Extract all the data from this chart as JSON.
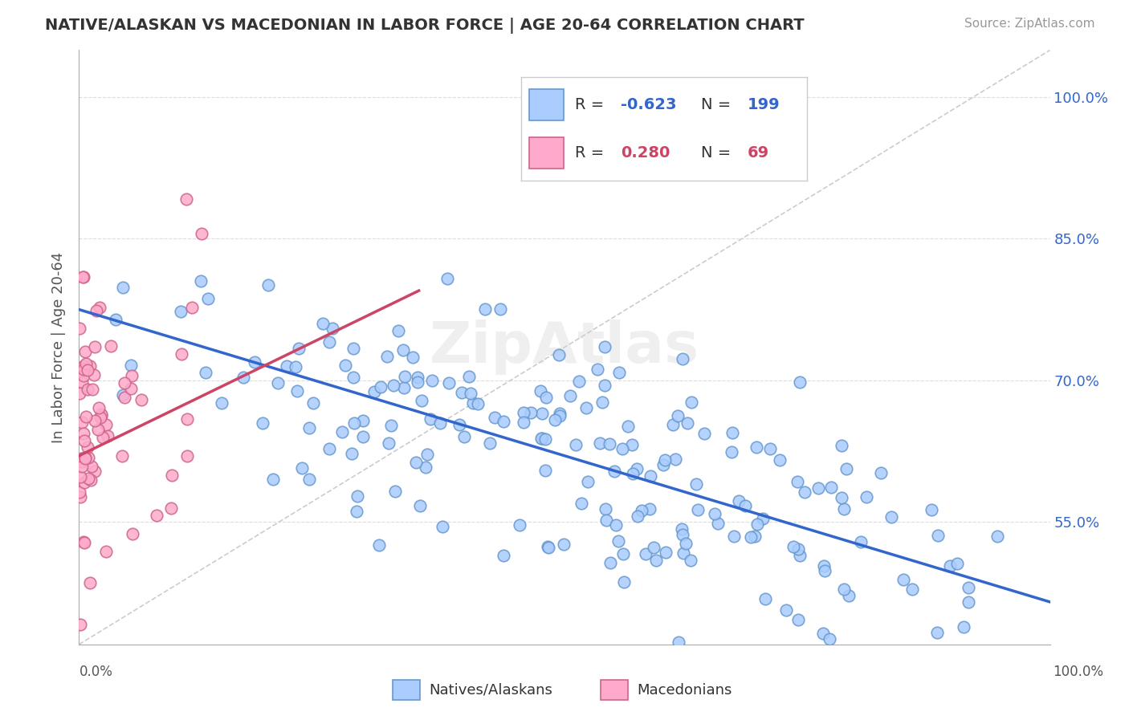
{
  "title": "NATIVE/ALASKAN VS MACEDONIAN IN LABOR FORCE | AGE 20-64 CORRELATION CHART",
  "source_text": "Source: ZipAtlas.com",
  "ylabel": "In Labor Force | Age 20-64",
  "y_tick_labels": [
    "55.0%",
    "70.0%",
    "85.0%",
    "100.0%"
  ],
  "y_tick_values": [
    0.55,
    0.7,
    0.85,
    1.0
  ],
  "x_range": [
    0.0,
    1.0
  ],
  "y_range": [
    0.42,
    1.05
  ],
  "blue_color": "#aaccff",
  "blue_edge": "#6699cc",
  "pink_color": "#ffaacc",
  "pink_edge": "#cc6688",
  "blue_line_color": "#3366cc",
  "pink_line_color": "#cc4466",
  "ref_line_color": "#cccccc",
  "watermark": "ZipAtlas",
  "legend_label1": "Natives/Alaskans",
  "legend_label2": "Macedonians",
  "title_color": "#333333",
  "axis_label_color": "#555555",
  "tick_color": "#3366cc",
  "background": "#ffffff",
  "plot_bg": "#ffffff",
  "blue_N": 199,
  "pink_N": 69,
  "blue_intercept": 0.775,
  "blue_slope": -0.31,
  "pink_intercept": 0.62,
  "pink_slope": 0.5
}
